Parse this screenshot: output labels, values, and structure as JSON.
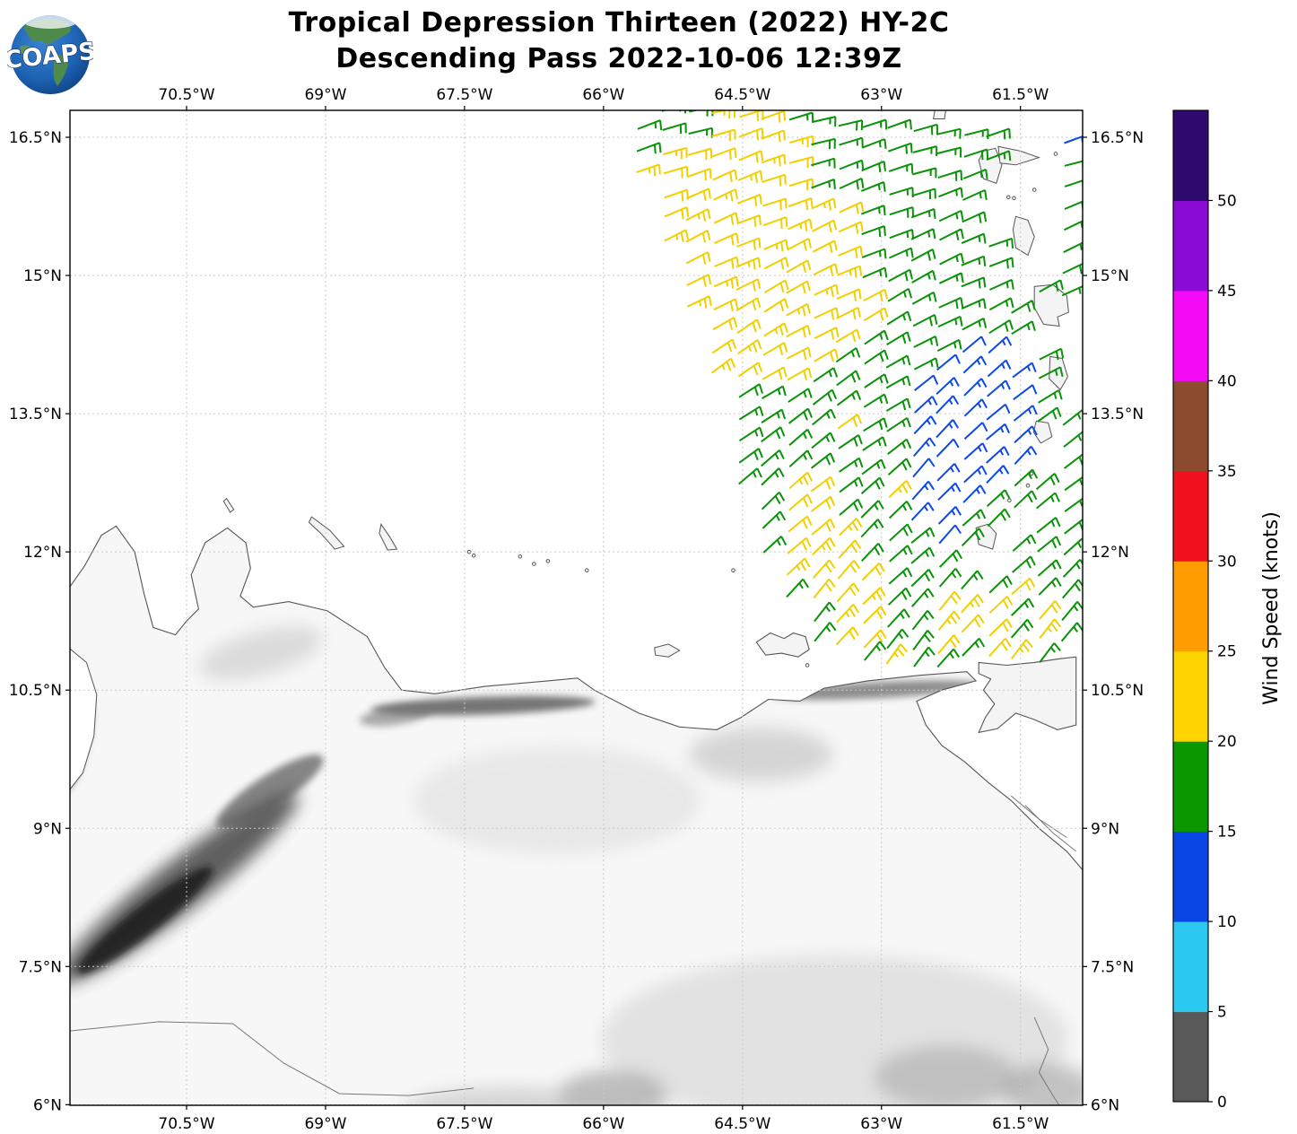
{
  "header": {
    "logo_text": "COAPS",
    "title_line1": "Tropical Depression Thirteen (2022) HY-2C",
    "title_line2": "Descending Pass 2022-10-06 12:39Z"
  },
  "axes": {
    "lon_tick_labels": [
      "70.5°W",
      "69°W",
      "67.5°W",
      "66°W",
      "64.5°W",
      "63°W",
      "61.5°W"
    ],
    "lon_tick_values": [
      -70.5,
      -69,
      -67.5,
      -66,
      -64.5,
      -63,
      -61.5
    ],
    "lat_tick_labels": [
      "16.5°N",
      "15°N",
      "13.5°N",
      "12°N",
      "10.5°N",
      "9°N",
      "7.5°N",
      "6°N"
    ],
    "lat_tick_values": [
      16.5,
      15,
      13.5,
      12,
      10.5,
      9,
      7.5,
      6
    ]
  },
  "colorbar": {
    "label": "Wind Speed (knots)",
    "tick_values": [
      0,
      5,
      10,
      15,
      20,
      25,
      30,
      35,
      40,
      45,
      50
    ],
    "segments": [
      {
        "from": 0,
        "to": 5,
        "color": "#595959"
      },
      {
        "from": 5,
        "to": 10,
        "color": "#2bc9f2"
      },
      {
        "from": 10,
        "to": 15,
        "color": "#0846e6"
      },
      {
        "from": 15,
        "to": 20,
        "color": "#0a9800"
      },
      {
        "from": 20,
        "to": 25,
        "color": "#ffd300"
      },
      {
        "from": 25,
        "to": 30,
        "color": "#ff9c00"
      },
      {
        "from": 30,
        "to": 35,
        "color": "#f0101e"
      },
      {
        "from": 35,
        "to": 40,
        "color": "#8c4a2f"
      },
      {
        "from": 40,
        "to": 45,
        "color": "#f50af5"
      },
      {
        "from": 45,
        "to": 50,
        "color": "#8a0bd3"
      },
      {
        "from": 50,
        "to": 55,
        "color": "#2f0a6e"
      }
    ]
  },
  "chart_data": {
    "type": "wind-barb-map",
    "title": "Tropical Depression Thirteen (2022) HY-2C Descending Pass 2022-10-06 12:39Z",
    "lon_range": [
      -71.76,
      -60.83
    ],
    "lat_range": [
      5.99,
      16.79
    ],
    "grid": "dashed lat/lon graticule at labeled ticks",
    "wind_field": {
      "note": "satellite scatterometer swath, one character per barb cell; . = no data",
      "col0_lon": -65.9,
      "dlon": 0.27,
      "classes": {
        "G": {
          "color": "#0a9208",
          "knots": 17,
          "speed_band": "15-20 kt"
        },
        "Y": {
          "color": "#f2cf00",
          "knots": 22,
          "speed_band": "20-25 kt"
        },
        "B": {
          "color": "#0d49e8",
          "knots": 13,
          "speed_band": "10-15 kt"
        }
      },
      "rows": [
        {
          "lat": 16.75,
          "cells": ".GGGYYYGGGGGGGGG..B"
        },
        {
          "lat": 16.52,
          "cells": ".GGGYYYYGGGGGGGG..G"
        },
        {
          "lat": 16.28,
          "cells": ".GYYYYYYGGGGGGG...G"
        },
        {
          "lat": 16.05,
          "cells": ".YYYYYYYGGGGGGG...G"
        },
        {
          "lat": 15.81,
          "cells": "..YYYYYYYYGGGGG...G"
        },
        {
          "lat": 15.58,
          "cells": "..YYYYYYYYGGGGGG..G"
        },
        {
          "lat": 15.34,
          "cells": "..YYYYYYYYGGGGGG..G"
        },
        {
          "lat": 15.11,
          "cells": "...YYYYYYYGGGGGG.GG"
        },
        {
          "lat": 14.87,
          "cells": "...YYYYYYYYGGGGGG.."
        },
        {
          "lat": 14.64,
          "cells": "...YYYYYYYYGGGGGG.."
        },
        {
          "lat": 14.4,
          "cells": "....YYYYYYGGGGBB.G."
        },
        {
          "lat": 14.17,
          "cells": "....YYYYYGGGGBBBBG."
        },
        {
          "lat": 13.93,
          "cells": "....YYYYGGGGBBBBBG."
        },
        {
          "lat": 13.7,
          "cells": ".....GGGGGGGBBBBBGG"
        },
        {
          "lat": 13.46,
          "cells": ".....GGGGYGGBBBBB.G"
        },
        {
          "lat": 13.23,
          "cells": ".....GGGGGGGBBBBB.G"
        },
        {
          "lat": 12.99,
          "cells": ".....GGGGGGGBBBBGGG"
        },
        {
          "lat": 12.76,
          "cells": ".....GGYYGGYBBBGGGG"
        },
        {
          "lat": 12.52,
          "cells": "......GYYGGGBBGG.GG"
        },
        {
          "lat": 12.29,
          "cells": "......GYYYGGGBG.GGG"
        },
        {
          "lat": 12.05,
          "cells": "......GYYYGGGG..GGG"
        },
        {
          "lat": 11.82,
          "cells": ".......YYYYGGGGGYGG"
        },
        {
          "lat": 11.58,
          "cells": ".......GYYYGGYYYGYG"
        },
        {
          "lat": 11.35,
          "cells": "........GYYGGYYYGYG"
        },
        {
          "lat": 11.11,
          "cells": "........GYYGGYGYYG."
        },
        {
          "lat": 10.95,
          "cells": "..........GYGG....."
        }
      ]
    }
  }
}
